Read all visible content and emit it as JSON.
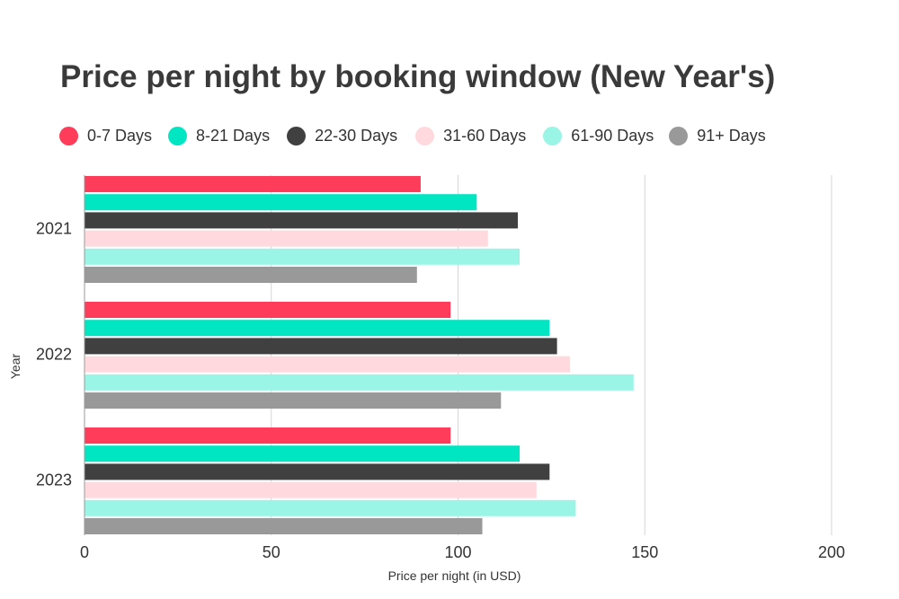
{
  "chart_data": {
    "type": "bar",
    "orientation": "horizontal",
    "title": "Price per night by booking window (New Year's)",
    "xlabel": "Price per night (in USD)",
    "ylabel": "Year",
    "categories": [
      "2021",
      "2022",
      "2023"
    ],
    "xlim": [
      0,
      200
    ],
    "xticks": [
      0,
      50,
      100,
      150,
      200
    ],
    "grid": true,
    "legend_position": "top-left",
    "series": [
      {
        "name": "0-7 Days",
        "color": "#ff3d5a",
        "values": [
          90,
          98,
          98
        ]
      },
      {
        "name": "8-21 Days",
        "color": "#00e6c3",
        "values": [
          105,
          124.5,
          116.5
        ]
      },
      {
        "name": "22-30 Days",
        "color": "#404040",
        "values": [
          116,
          126.5,
          124.5
        ]
      },
      {
        "name": "31-60 Days",
        "color": "#ffd9de",
        "values": [
          108,
          130,
          121
        ]
      },
      {
        "name": "61-90 Days",
        "color": "#9af5e6",
        "values": [
          116.5,
          147,
          131.5
        ]
      },
      {
        "name": "91+ Days",
        "color": "#999999",
        "values": [
          89,
          111.5,
          106.5
        ]
      }
    ]
  }
}
